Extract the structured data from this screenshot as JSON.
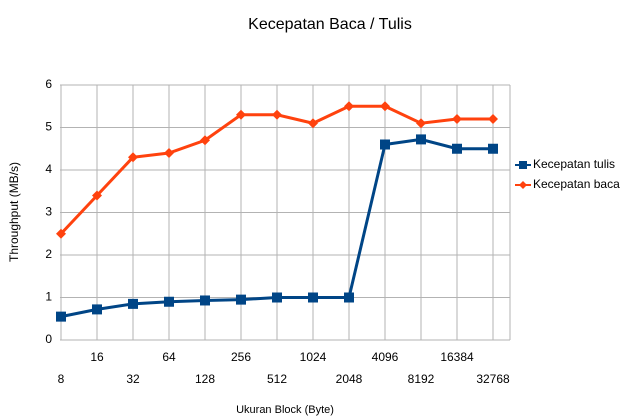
{
  "chart_data": {
    "type": "line",
    "title": "Kecepatan Baca / Tulis",
    "x_label": "Ukuran Block (Byte)",
    "y_label": "Throughput (MB/s)",
    "categories": [
      "8",
      "16",
      "32",
      "64",
      "128",
      "256",
      "512",
      "1024",
      "2048",
      "4096",
      "8192",
      "16384",
      "32768"
    ],
    "series": [
      {
        "name": "Kecepatan tulis",
        "color": "#004586",
        "marker": "square",
        "values": [
          0.55,
          0.72,
          0.85,
          0.9,
          0.93,
          0.95,
          1.0,
          1.0,
          1.0,
          4.6,
          4.72,
          4.5,
          4.5
        ]
      },
      {
        "name": "Kecepatan baca",
        "color": "#ff420e",
        "marker": "diamond",
        "values": [
          2.5,
          3.4,
          4.3,
          4.4,
          4.7,
          5.3,
          5.3,
          5.1,
          5.5,
          5.5,
          5.1,
          5.2,
          5.2
        ]
      }
    ],
    "ylim": [
      0,
      6
    ],
    "yticks": [
      0,
      1,
      2,
      3,
      4,
      5,
      6
    ],
    "grid": true,
    "legend": "right"
  }
}
